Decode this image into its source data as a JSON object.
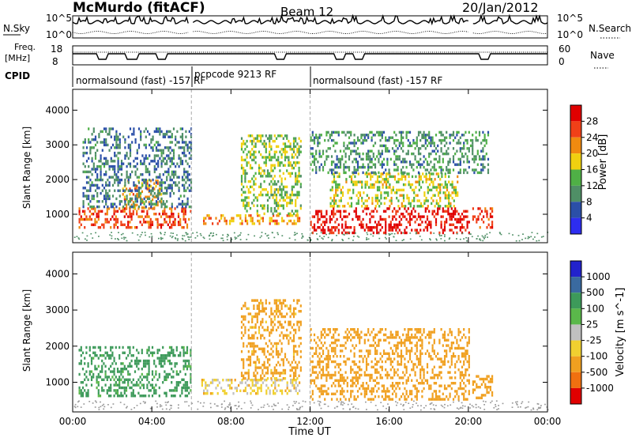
{
  "header": {
    "station": "McMurdo (fitACF)",
    "beam": "Beam 12",
    "date": "20/Jan/2012"
  },
  "noise_panel": {
    "left_label": "N.Sky",
    "left_ticks": [
      "10^5",
      "10^0"
    ],
    "right_ticks": [
      "10^5",
      "10^0"
    ],
    "right_label": "N.Search"
  },
  "freq_panel": {
    "left_label_1": "Freq.",
    "left_label_2": "[MHz]",
    "left_ticks": [
      "18",
      "8"
    ],
    "right_ticks": [
      "60",
      "0"
    ],
    "right_label": "Nave"
  },
  "cpid": {
    "label": "CPID",
    "segments": [
      {
        "text": "normalsound (fast) -157 RF",
        "start_hour": 0,
        "end_hour": 6
      },
      {
        "text": "pcpcode 9213 RF",
        "start_hour": 6,
        "end_hour": 12
      },
      {
        "text": "normalsound (fast) -157 RF",
        "start_hour": 12,
        "end_hour": 24
      }
    ]
  },
  "axes": {
    "ylabel": "Slant Range [km]",
    "xlabel": "Time UT",
    "yticks": [
      "1000",
      "2000",
      "3000",
      "4000"
    ],
    "xticks": [
      "00:00",
      "04:00",
      "08:00",
      "12:00",
      "16:00",
      "20:00",
      "00:00"
    ]
  },
  "power_scale": {
    "label": "Power [dB]",
    "ticks": [
      "4",
      "8",
      "12",
      "16",
      "20",
      "24",
      "28"
    ],
    "colors": [
      "#2d2df0",
      "#2b4fa8",
      "#4f8f66",
      "#4fb046",
      "#f0d010",
      "#f08a10",
      "#f04018",
      "#e00000"
    ]
  },
  "velocity_scale": {
    "label": "Velocity [m s^-1]",
    "ticks": [
      "1000",
      "500",
      "100",
      "25",
      "-25",
      "-100",
      "-500",
      "-1000"
    ],
    "colors": [
      "#2222cc",
      "#3a6aa0",
      "#3d9a5a",
      "#5ab84a",
      "#c0c0c0",
      "#f0d030",
      "#f0a020",
      "#f07010",
      "#e00000"
    ]
  },
  "chart_data": {
    "type": "heatmap",
    "title": "McMurdo (fitACF)",
    "xlabel": "Time UT",
    "ylabel": "Slant Range [km]",
    "xlim": [
      0,
      24
    ],
    "ylim": [
      180,
      4600
    ],
    "power_clim": [
      0,
      30
    ],
    "velocity_clim": [
      -1000,
      1000
    ],
    "power_regions": [
      {
        "t0": 0.3,
        "t1": 6.0,
        "r0": 600,
        "r1": 1200,
        "value": 24
      },
      {
        "t0": 2.5,
        "t1": 4.5,
        "r0": 1200,
        "r1": 2000,
        "value": 20
      },
      {
        "t0": 6.5,
        "t1": 11.5,
        "r0": 700,
        "r1": 1000,
        "value": 20
      },
      {
        "t0": 8.5,
        "t1": 11.5,
        "r0": 1000,
        "r1": 3300,
        "value": 14
      },
      {
        "t0": 12.0,
        "t1": 20.0,
        "r0": 500,
        "r1": 1200,
        "value": 28
      },
      {
        "t0": 13.0,
        "t1": 19.5,
        "r0": 1200,
        "r1": 2200,
        "value": 16
      },
      {
        "t0": 20.2,
        "t1": 21.2,
        "r0": 600,
        "r1": 1200,
        "value": 26
      },
      {
        "t0": 0.5,
        "t1": 6.0,
        "r0": 1200,
        "r1": 3500,
        "value": 8
      },
      {
        "t0": 12.0,
        "t1": 21.0,
        "r0": 2200,
        "r1": 3400,
        "value": 10
      }
    ],
    "velocity_regions": [
      {
        "t0": 0.3,
        "t1": 6.0,
        "r0": 600,
        "r1": 2000,
        "value": 150
      },
      {
        "t0": 6.5,
        "t1": 11.5,
        "r0": 700,
        "r1": 1100,
        "value": -50
      },
      {
        "t0": 8.5,
        "t1": 11.5,
        "r0": 1100,
        "r1": 3300,
        "value": -150
      },
      {
        "t0": 12.0,
        "t1": 20.0,
        "r0": 500,
        "r1": 2500,
        "value": -300
      },
      {
        "t0": 20.2,
        "t1": 21.2,
        "r0": 600,
        "r1": 1200,
        "value": -200
      }
    ]
  }
}
